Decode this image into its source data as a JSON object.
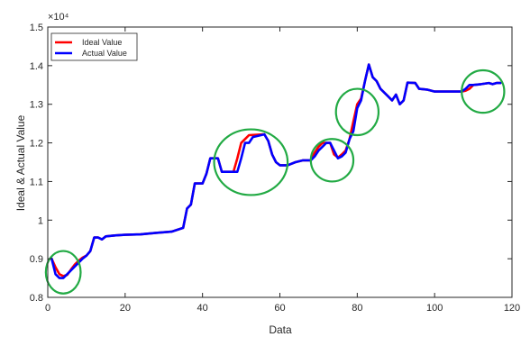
{
  "chart_data": {
    "type": "line",
    "title": "",
    "xlabel": "Data",
    "ylabel": "Ideal & Actual Value",
    "xlim": [
      0,
      120
    ],
    "ylim": [
      0.8,
      1.5
    ],
    "xticks": [
      0,
      20,
      40,
      60,
      80,
      100,
      120
    ],
    "yticks": [
      0.8,
      0.9,
      1,
      1.1,
      1.2,
      1.3,
      1.4,
      1.5
    ],
    "ytick_labels": [
      "0.8",
      "0.9",
      "1",
      "1.1",
      "1.2",
      "1.3",
      "1.4",
      "1.5"
    ],
    "y_multiplier": "×10⁴",
    "grid": false,
    "legend_position": "top-left",
    "series": [
      {
        "name": "Ideal Value",
        "color": "#ff0000",
        "points": [
          [
            1,
            0.9
          ],
          [
            2,
            0.878
          ],
          [
            3,
            0.86
          ],
          [
            4,
            0.855
          ],
          [
            5,
            0.858
          ],
          [
            6,
            0.872
          ],
          [
            7,
            0.885
          ],
          [
            8,
            0.895
          ],
          [
            9,
            0.903
          ],
          [
            10,
            0.908
          ],
          [
            11,
            0.92
          ],
          [
            12,
            0.955
          ],
          [
            13,
            0.955
          ],
          [
            14,
            0.95
          ],
          [
            15,
            0.958
          ],
          [
            17,
            0.96
          ],
          [
            20,
            0.962
          ],
          [
            24,
            0.963
          ],
          [
            28,
            0.967
          ],
          [
            32,
            0.97
          ],
          [
            35,
            0.98
          ],
          [
            36,
            1.03
          ],
          [
            37,
            1.04
          ],
          [
            38,
            1.095
          ],
          [
            40,
            1.095
          ],
          [
            41,
            1.12
          ],
          [
            42,
            1.16
          ],
          [
            44,
            1.16
          ],
          [
            45,
            1.125
          ],
          [
            46,
            1.125
          ],
          [
            48,
            1.125
          ],
          [
            49,
            1.16
          ],
          [
            50,
            1.2
          ],
          [
            51,
            1.21
          ],
          [
            52,
            1.22
          ],
          [
            56,
            1.222
          ],
          [
            57,
            1.205
          ],
          [
            58,
            1.17
          ],
          [
            59,
            1.15
          ],
          [
            60,
            1.142
          ],
          [
            62,
            1.142
          ],
          [
            64,
            1.15
          ],
          [
            66,
            1.155
          ],
          [
            68,
            1.155
          ],
          [
            69,
            1.175
          ],
          [
            70,
            1.19
          ],
          [
            71,
            1.2
          ],
          [
            73,
            1.2
          ],
          [
            74,
            1.17
          ],
          [
            75,
            1.162
          ],
          [
            76,
            1.17
          ],
          [
            77,
            1.18
          ],
          [
            78,
            1.21
          ],
          [
            79,
            1.255
          ],
          [
            80,
            1.3
          ],
          [
            81,
            1.315
          ],
          [
            82,
            1.36
          ],
          [
            83,
            1.403
          ],
          [
            84,
            1.37
          ],
          [
            85,
            1.36
          ],
          [
            86,
            1.34
          ],
          [
            88,
            1.32
          ],
          [
            89,
            1.31
          ],
          [
            90,
            1.325
          ],
          [
            91,
            1.3
          ],
          [
            92,
            1.31
          ],
          [
            93,
            1.356
          ],
          [
            95,
            1.355
          ],
          [
            96,
            1.34
          ],
          [
            98,
            1.338
          ],
          [
            100,
            1.333
          ],
          [
            104,
            1.333
          ],
          [
            107,
            1.333
          ],
          [
            108,
            1.335
          ],
          [
            109,
            1.34
          ],
          [
            110,
            1.35
          ],
          [
            112,
            1.352
          ],
          [
            114,
            1.355
          ],
          [
            115,
            1.352
          ],
          [
            116,
            1.355
          ],
          [
            117,
            1.355
          ]
        ]
      },
      {
        "name": "Actual Value",
        "color": "#0000ff",
        "points": [
          [
            1,
            0.9
          ],
          [
            2,
            0.86
          ],
          [
            3,
            0.85
          ],
          [
            4,
            0.85
          ],
          [
            5,
            0.86
          ],
          [
            6,
            0.87
          ],
          [
            7,
            0.88
          ],
          [
            8,
            0.89
          ],
          [
            9,
            0.9
          ],
          [
            10,
            0.908
          ],
          [
            11,
            0.92
          ],
          [
            12,
            0.955
          ],
          [
            13,
            0.955
          ],
          [
            14,
            0.95
          ],
          [
            15,
            0.958
          ],
          [
            17,
            0.96
          ],
          [
            20,
            0.962
          ],
          [
            24,
            0.963
          ],
          [
            28,
            0.967
          ],
          [
            32,
            0.97
          ],
          [
            35,
            0.98
          ],
          [
            36,
            1.03
          ],
          [
            37,
            1.04
          ],
          [
            38,
            1.095
          ],
          [
            40,
            1.095
          ],
          [
            41,
            1.12
          ],
          [
            42,
            1.16
          ],
          [
            44,
            1.16
          ],
          [
            45,
            1.125
          ],
          [
            48,
            1.125
          ],
          [
            49,
            1.125
          ],
          [
            50,
            1.16
          ],
          [
            51,
            1.2
          ],
          [
            52,
            1.2
          ],
          [
            53,
            1.215
          ],
          [
            56,
            1.222
          ],
          [
            57,
            1.205
          ],
          [
            58,
            1.17
          ],
          [
            59,
            1.15
          ],
          [
            60,
            1.142
          ],
          [
            62,
            1.142
          ],
          [
            64,
            1.15
          ],
          [
            66,
            1.155
          ],
          [
            68,
            1.155
          ],
          [
            69,
            1.165
          ],
          [
            70,
            1.18
          ],
          [
            71,
            1.19
          ],
          [
            72,
            1.2
          ],
          [
            73,
            1.2
          ],
          [
            74,
            1.18
          ],
          [
            75,
            1.16
          ],
          [
            76,
            1.165
          ],
          [
            77,
            1.175
          ],
          [
            78,
            1.21
          ],
          [
            79,
            1.23
          ],
          [
            80,
            1.29
          ],
          [
            81,
            1.31
          ],
          [
            82,
            1.36
          ],
          [
            83,
            1.403
          ],
          [
            84,
            1.37
          ],
          [
            85,
            1.36
          ],
          [
            86,
            1.34
          ],
          [
            88,
            1.32
          ],
          [
            89,
            1.31
          ],
          [
            90,
            1.325
          ],
          [
            91,
            1.3
          ],
          [
            92,
            1.31
          ],
          [
            93,
            1.356
          ],
          [
            95,
            1.355
          ],
          [
            96,
            1.34
          ],
          [
            98,
            1.338
          ],
          [
            100,
            1.333
          ],
          [
            104,
            1.333
          ],
          [
            107,
            1.333
          ],
          [
            108,
            1.34
          ],
          [
            109,
            1.35
          ],
          [
            110,
            1.35
          ],
          [
            112,
            1.352
          ],
          [
            114,
            1.355
          ],
          [
            115,
            1.352
          ],
          [
            116,
            1.355
          ],
          [
            117,
            1.355
          ]
        ]
      }
    ],
    "annotations": [
      {
        "type": "circle",
        "color": "#22aa44",
        "cx": 4,
        "cy": 0.865,
        "rx": 4.5,
        "ry": 0.055
      },
      {
        "type": "circle",
        "color": "#22aa44",
        "cx": 52.5,
        "cy": 1.15,
        "rx": 9.5,
        "ry": 0.085
      },
      {
        "type": "circle",
        "color": "#22aa44",
        "cx": 73.5,
        "cy": 1.155,
        "rx": 5.5,
        "ry": 0.055
      },
      {
        "type": "circle",
        "color": "#22aa44",
        "cx": 80,
        "cy": 1.28,
        "rx": 5.5,
        "ry": 0.06
      },
      {
        "type": "circle",
        "color": "#22aa44",
        "cx": 112.5,
        "cy": 1.333,
        "rx": 5.5,
        "ry": 0.055
      }
    ]
  }
}
